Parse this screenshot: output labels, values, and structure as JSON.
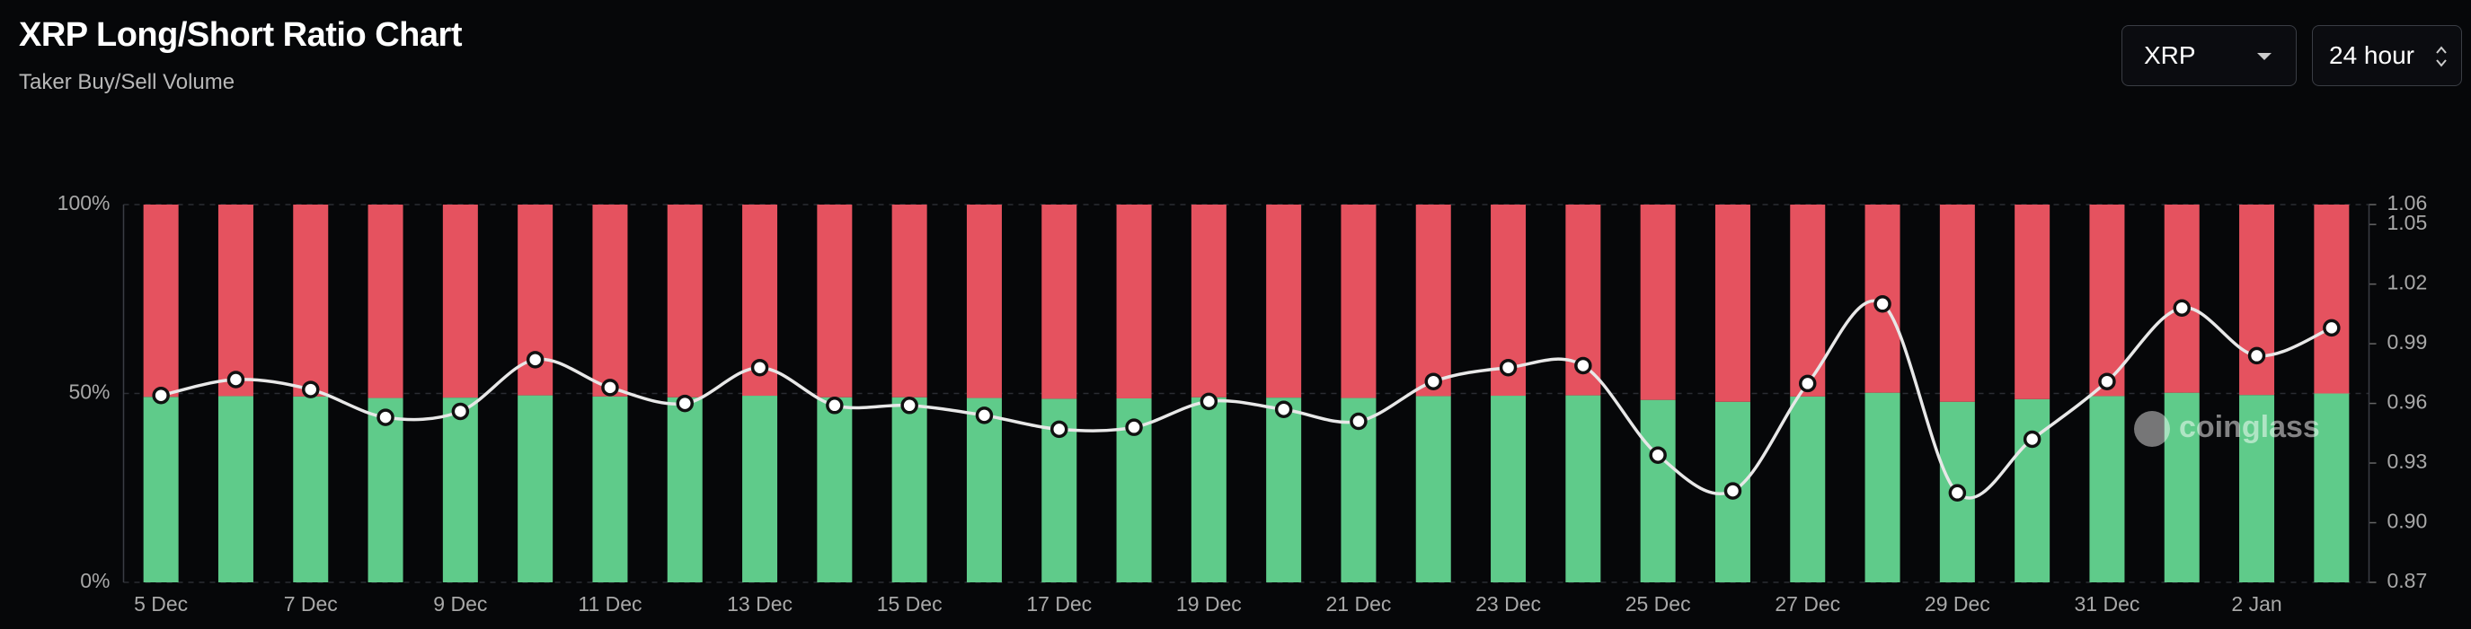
{
  "header": {
    "title": "XRP Long/Short Ratio Chart",
    "subtitle": "Taker Buy/Sell Volume"
  },
  "controls": {
    "symbol": "XRP",
    "interval": "24 hour"
  },
  "watermark": "coinglass",
  "chart_data": {
    "type": "bar",
    "stacked": true,
    "categories": [
      "5 Dec",
      null,
      "7 Dec",
      null,
      "9 Dec",
      null,
      "11 Dec",
      null,
      "13 Dec",
      null,
      "15 Dec",
      null,
      "17 Dec",
      null,
      "19 Dec",
      null,
      "21 Dec",
      null,
      "23 Dec",
      null,
      "25 Dec",
      null,
      "27 Dec",
      null,
      "29 Dec",
      null,
      "31 Dec",
      null,
      "2 Jan",
      null
    ],
    "series": [
      {
        "type": "bar",
        "color": "#5fcb8a",
        "values": [
          49.1,
          49.3,
          49.2,
          48.8,
          48.9,
          49.5,
          49.2,
          49.0,
          49.4,
          49.0,
          49.0,
          48.8,
          48.6,
          48.7,
          49.0,
          48.9,
          48.8,
          49.3,
          49.4,
          49.5,
          48.3,
          47.8,
          49.2,
          50.2,
          47.8,
          48.5,
          49.3,
          50.2,
          49.6,
          50.0
        ]
      },
      {
        "type": "bar",
        "color": "#e5525f",
        "values": [
          50.9,
          50.7,
          50.8,
          51.2,
          51.1,
          50.5,
          50.8,
          51.0,
          50.6,
          51.0,
          51.0,
          51.2,
          51.4,
          51.3,
          51.0,
          51.1,
          51.2,
          50.7,
          50.6,
          50.5,
          51.7,
          52.2,
          50.8,
          49.8,
          52.2,
          51.5,
          50.7,
          49.8,
          50.4,
          50.0
        ]
      },
      {
        "type": "line",
        "axis": "y2",
        "color": "#e8e8e8",
        "values": [
          0.964,
          0.972,
          0.967,
          0.953,
          0.956,
          0.982,
          0.968,
          0.96,
          0.978,
          0.959,
          0.959,
          0.954,
          0.947,
          0.948,
          0.961,
          0.957,
          0.951,
          0.971,
          0.978,
          0.979,
          0.934,
          0.916,
          0.97,
          1.01,
          0.915,
          0.942,
          0.971,
          1.008,
          0.984,
          0.998
        ]
      }
    ],
    "ylim": [
      0,
      100
    ],
    "yticks": [
      {
        "value": 0,
        "label": "0%"
      },
      {
        "value": 50,
        "label": "50%"
      },
      {
        "value": 100,
        "label": "100%"
      }
    ],
    "y2lim": [
      0.87,
      1.06
    ],
    "y2ticks": [
      0.87,
      {
        "value": 0.9,
        "label": "0.90"
      },
      0.93,
      0.96,
      0.99,
      1.02,
      1.05,
      1.06
    ],
    "grid": true
  }
}
